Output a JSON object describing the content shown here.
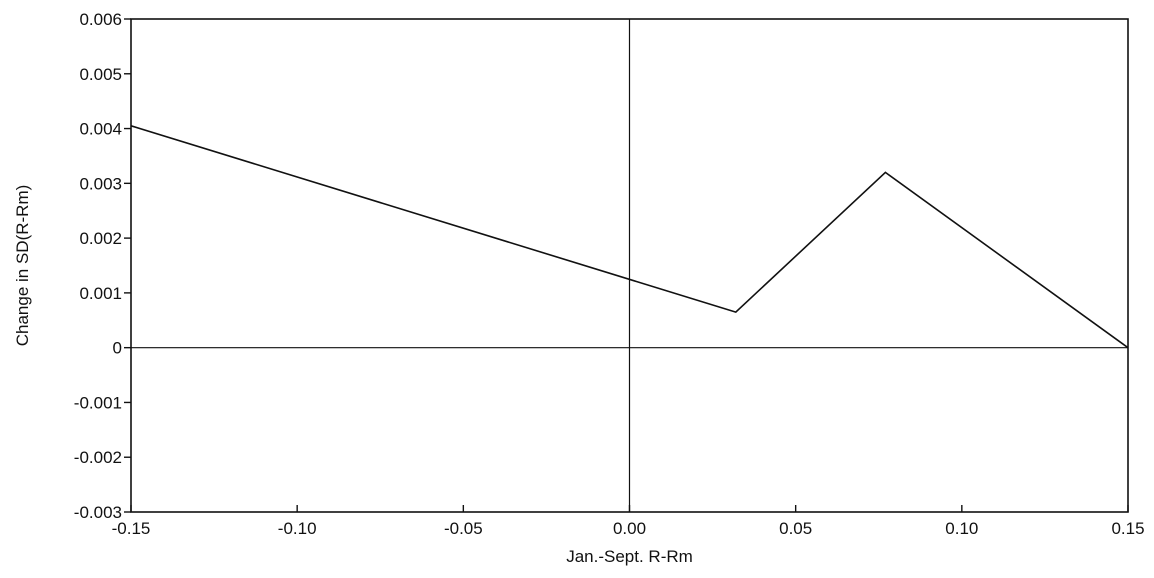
{
  "chart_data": {
    "type": "line",
    "title": "",
    "xlabel": "Jan.-Sept. R-Rm",
    "ylabel": "Change in SD(R-Rm)",
    "xlim": [
      -0.15,
      0.15
    ],
    "ylim": [
      -0.003,
      0.006
    ],
    "x_ticks": [
      {
        "value": -0.15,
        "label": "-0.15"
      },
      {
        "value": -0.1,
        "label": "-0.10"
      },
      {
        "value": -0.05,
        "label": "-0.05"
      },
      {
        "value": 0.0,
        "label": "0.00"
      },
      {
        "value": 0.05,
        "label": "0.05"
      },
      {
        "value": 0.1,
        "label": "0.10"
      },
      {
        "value": 0.15,
        "label": "0.15"
      }
    ],
    "y_ticks": [
      {
        "value": -0.003,
        "label": "-0.003"
      },
      {
        "value": -0.002,
        "label": "-0.002"
      },
      {
        "value": -0.001,
        "label": "-0.001"
      },
      {
        "value": 0,
        "label": "0"
      },
      {
        "value": 0.001,
        "label": "0.001"
      },
      {
        "value": 0.002,
        "label": "0.002"
      },
      {
        "value": 0.003,
        "label": "0.003"
      },
      {
        "value": 0.004,
        "label": "0.004"
      },
      {
        "value": 0.005,
        "label": "0.005"
      },
      {
        "value": 0.006,
        "label": "0.006"
      }
    ],
    "reference_lines": {
      "x_zero": 0,
      "y_zero": 0
    },
    "grid": false,
    "series": [
      {
        "x": [
          -0.15,
          0.032,
          0.077,
          0.15
        ],
        "y": [
          0.00405,
          0.00065,
          0.0032,
          0.0
        ]
      }
    ],
    "colors": {
      "line": "#111111",
      "axis": "#111111"
    }
  }
}
